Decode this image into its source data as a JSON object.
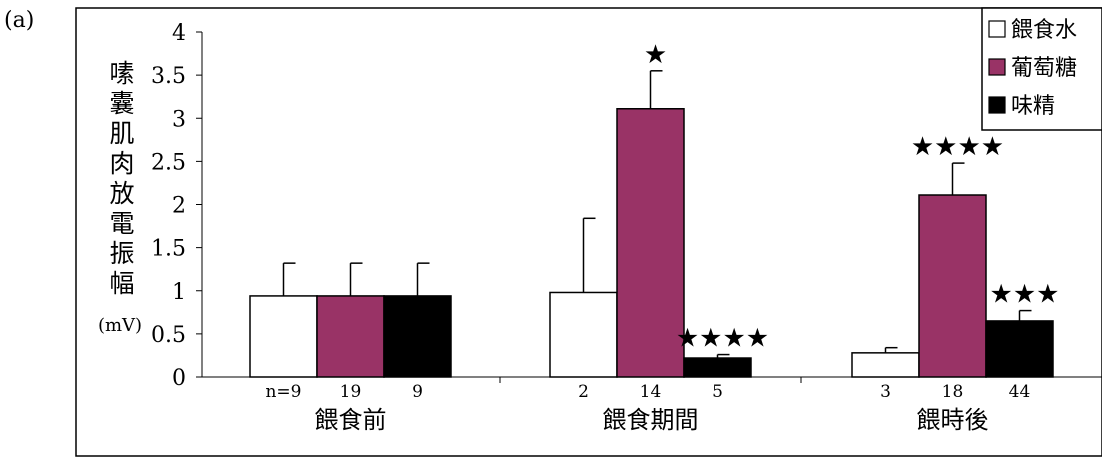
{
  "panel_label": "(a)",
  "chart_data": {
    "type": "bar",
    "ylabel_chars": [
      "嗉",
      "囊",
      "肌",
      "肉",
      "放",
      "電",
      "振",
      "幅"
    ],
    "yunit": "(mV)",
    "ylim": [
      0,
      4
    ],
    "yticks": [
      0,
      0.5,
      1,
      1.5,
      2,
      2.5,
      3,
      3.5,
      4
    ],
    "ytick_labels": [
      "0",
      "0.5",
      "1",
      "1.5",
      "2",
      "2.5",
      "3",
      "3.5",
      "4"
    ],
    "legend_position": "top-right",
    "groups": [
      "餵食前",
      "餵食期間",
      "餵時後"
    ],
    "series": [
      {
        "name": "餵食水",
        "color": "#ffffff",
        "values": [
          0.94,
          0.98,
          0.28
        ],
        "errors": [
          0.38,
          0.86,
          0.06
        ],
        "n": [
          "n=9",
          "2",
          "3"
        ],
        "stars": [
          "",
          "",
          ""
        ]
      },
      {
        "name": "葡萄糖",
        "color": "#993366",
        "values": [
          0.94,
          3.11,
          2.11
        ],
        "errors": [
          0.38,
          0.44,
          0.37
        ],
        "n": [
          "19",
          "14",
          "18"
        ],
        "stars": [
          "",
          "★",
          "★★★★"
        ]
      },
      {
        "name": "味精",
        "color": "#000000",
        "values": [
          0.94,
          0.22,
          0.65
        ],
        "errors": [
          0.38,
          0.04,
          0.12
        ],
        "n": [
          "9",
          "5",
          "44"
        ],
        "stars": [
          "",
          "★★★★",
          "★★★"
        ]
      }
    ]
  }
}
